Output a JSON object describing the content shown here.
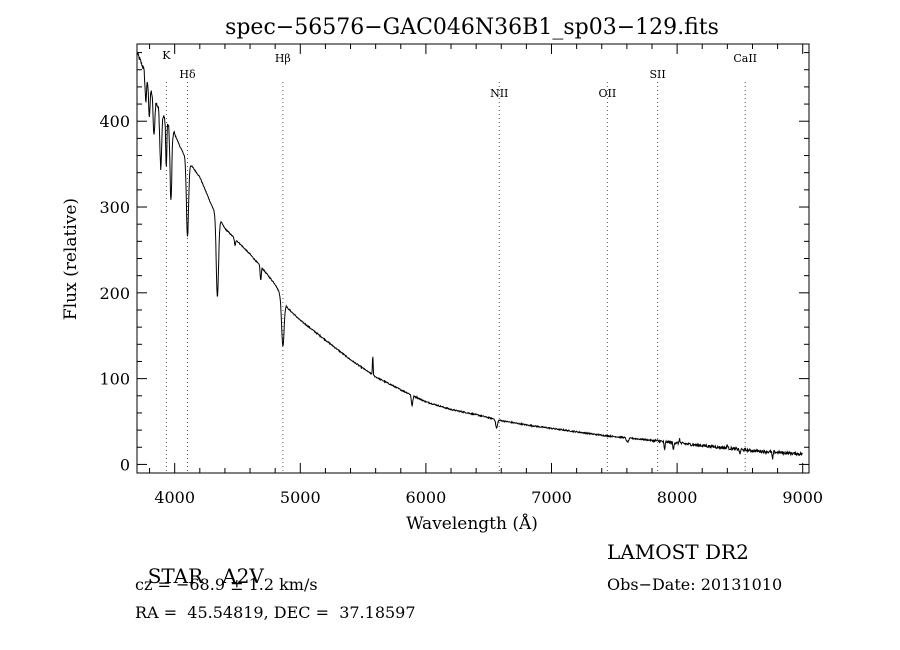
{
  "chart_data": {
    "type": "line",
    "title": "spec−56576−GAC046N36B1_sp03−129.fits",
    "xlabel": "Wavelength (Å)",
    "ylabel": "Flux (relative)",
    "xlim": [
      3700,
      9050
    ],
    "ylim": [
      -10,
      490
    ],
    "xticks": [
      4000,
      5000,
      6000,
      7000,
      8000,
      9000
    ],
    "yticks": [
      0,
      100,
      200,
      300,
      400
    ],
    "grid": false,
    "legend": "none",
    "continuum": [
      [
        3700,
        480
      ],
      [
        3750,
        462
      ],
      [
        3800,
        440
      ],
      [
        3850,
        422
      ],
      [
        3900,
        408
      ],
      [
        3950,
        396
      ],
      [
        4000,
        385
      ],
      [
        4050,
        368
      ],
      [
        4100,
        354
      ],
      [
        4150,
        345
      ],
      [
        4200,
        335
      ],
      [
        4300,
        300
      ],
      [
        4400,
        275
      ],
      [
        4500,
        260
      ],
      [
        4600,
        245
      ],
      [
        4700,
        228
      ],
      [
        4800,
        210
      ],
      [
        4900,
        182
      ],
      [
        5000,
        168
      ],
      [
        5200,
        145
      ],
      [
        5400,
        122
      ],
      [
        5600,
        102
      ],
      [
        5800,
        87
      ],
      [
        6000,
        73
      ],
      [
        6200,
        64
      ],
      [
        6400,
        58
      ],
      [
        6600,
        51
      ],
      [
        6800,
        46
      ],
      [
        7000,
        42
      ],
      [
        7200,
        38
      ],
      [
        7400,
        34
      ],
      [
        7600,
        31
      ],
      [
        7800,
        28
      ],
      [
        8000,
        25
      ],
      [
        8200,
        22
      ],
      [
        8400,
        19
      ],
      [
        8600,
        16
      ],
      [
        8800,
        14
      ],
      [
        9000,
        12
      ]
    ],
    "absorption_lines": [
      {
        "x": 3770,
        "depth": 30,
        "width": 8
      },
      {
        "x": 3798,
        "depth": 35,
        "width": 8
      },
      {
        "x": 3835,
        "depth": 45,
        "width": 9
      },
      {
        "x": 3889,
        "depth": 65,
        "width": 10
      },
      {
        "x": 3933,
        "depth": 55,
        "width": 6
      },
      {
        "x": 3970,
        "depth": 85,
        "width": 10
      },
      {
        "x": 4102,
        "depth": 88,
        "width": 12
      },
      {
        "x": 4340,
        "depth": 95,
        "width": 13
      },
      {
        "x": 4480,
        "depth": 8,
        "width": 6
      },
      {
        "x": 4685,
        "depth": 16,
        "width": 6
      },
      {
        "x": 4861,
        "depth": 55,
        "width": 14
      },
      {
        "x": 5890,
        "depth": 12,
        "width": 8
      },
      {
        "x": 6563,
        "depth": 10,
        "width": 10
      },
      {
        "x": 7605,
        "depth": 5,
        "width": 12
      },
      {
        "x": 7900,
        "depth": 10,
        "width": 6
      },
      {
        "x": 7970,
        "depth": 9,
        "width": 5
      },
      {
        "x": 8500,
        "depth": 6,
        "width": 5
      },
      {
        "x": 8760,
        "depth": 9,
        "width": 5
      }
    ],
    "emission_features": [
      {
        "x": 5577,
        "height": 22,
        "width": 4
      },
      {
        "x": 8020,
        "height": 6,
        "width": 4
      },
      {
        "x": 8400,
        "height": 5,
        "width": 4
      }
    ],
    "reference_lines": [
      {
        "label": "K",
        "x": 3934
      },
      {
        "label": "Hδ",
        "x": 4102
      },
      {
        "label": "Hβ",
        "x": 4861
      },
      {
        "label": "NII",
        "x": 6584
      },
      {
        "label": "OII",
        "x": 7445
      },
      {
        "label": "SII",
        "x": 7845
      },
      {
        "label": "CaII",
        "x": 8542
      }
    ]
  },
  "info": {
    "object_class": "STAR",
    "subclass": "A2V",
    "survey": "LAMOST DR2",
    "cz": "cz = −68.9 ± 1.2 km/s",
    "obs_date": "Obs−Date: 20131010",
    "coords": "RA =  45.54819, DEC =  37.18597"
  }
}
